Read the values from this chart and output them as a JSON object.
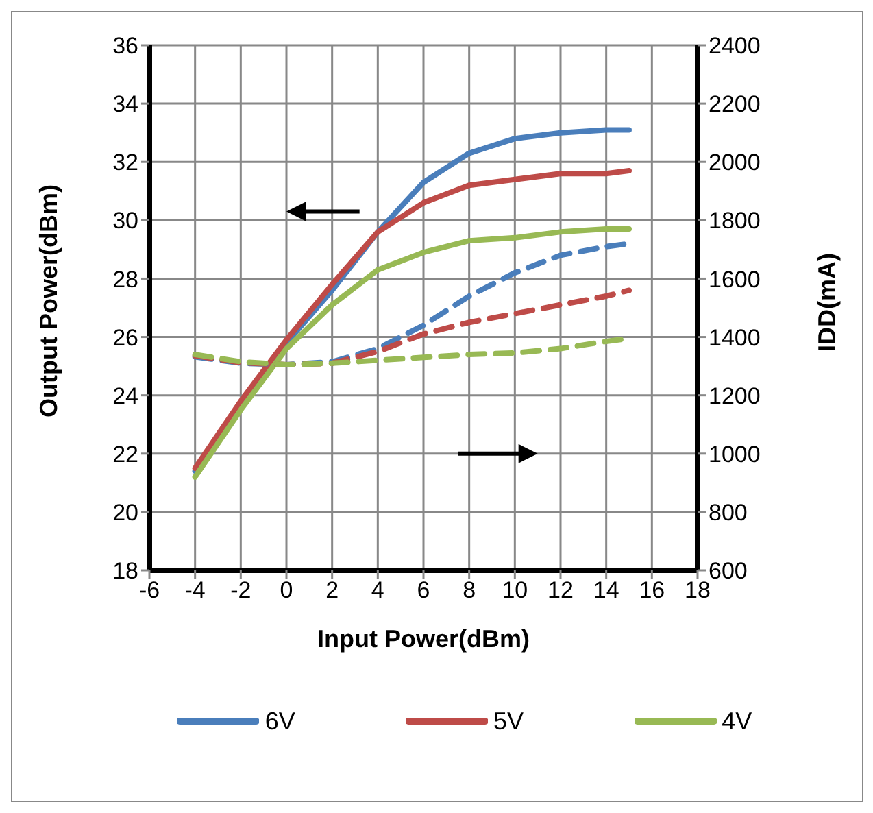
{
  "chart_data": {
    "type": "line",
    "xlabel": "Input Power(dBm)",
    "ylabel": "Output Power(dBm)",
    "y2label": "IDD(mA)",
    "x": [
      -4,
      -2,
      0,
      2,
      4,
      6,
      8,
      10,
      12,
      14,
      15
    ],
    "xlim": [
      -6,
      18
    ],
    "xticks": [
      -6,
      -4,
      -2,
      0,
      2,
      4,
      6,
      8,
      10,
      12,
      14,
      16,
      18
    ],
    "ylim": [
      18,
      36
    ],
    "yticks": [
      18,
      20,
      22,
      24,
      26,
      28,
      30,
      32,
      34,
      36
    ],
    "y2lim": [
      600,
      2400
    ],
    "y2ticks": [
      600,
      800,
      1000,
      1200,
      1400,
      1600,
      1800,
      2000,
      2200,
      2400
    ],
    "grid": true,
    "legend": "bottom",
    "marker": "none",
    "series": [
      {
        "name": "6V",
        "color": "#4a7ebb",
        "values": [
          21.4,
          23.7,
          25.8,
          27.6,
          29.6,
          31.3,
          32.3,
          32.8,
          33.0,
          33.1,
          33.1
        ]
      },
      {
        "name": "5V",
        "color": "#be4b48",
        "values": [
          21.5,
          23.8,
          25.9,
          27.8,
          29.6,
          30.6,
          31.2,
          31.4,
          31.6,
          31.6,
          31.7
        ]
      },
      {
        "name": "4V",
        "color": "#98b954",
        "values": [
          21.2,
          23.5,
          25.6,
          27.1,
          28.3,
          28.9,
          29.3,
          29.4,
          29.6,
          29.7,
          29.7
        ]
      },
      {
        "color": "#4a7ebb",
        "axis": "y2",
        "line_style": "dashed",
        "values": [
          1332,
          1310,
          1305,
          1315,
          1360,
          1440,
          1540,
          1620,
          1680,
          1710,
          1720
        ]
      },
      {
        "color": "#be4b48",
        "axis": "y2",
        "line_style": "dashed",
        "values": [
          1336,
          1312,
          1305,
          1310,
          1350,
          1410,
          1450,
          1480,
          1510,
          1540,
          1560
        ]
      },
      {
        "color": "#98b954",
        "axis": "y2",
        "line_style": "dashed",
        "values": [
          1340,
          1315,
          1305,
          1310,
          1320,
          1330,
          1340,
          1345,
          1360,
          1385,
          1395
        ]
      }
    ]
  }
}
